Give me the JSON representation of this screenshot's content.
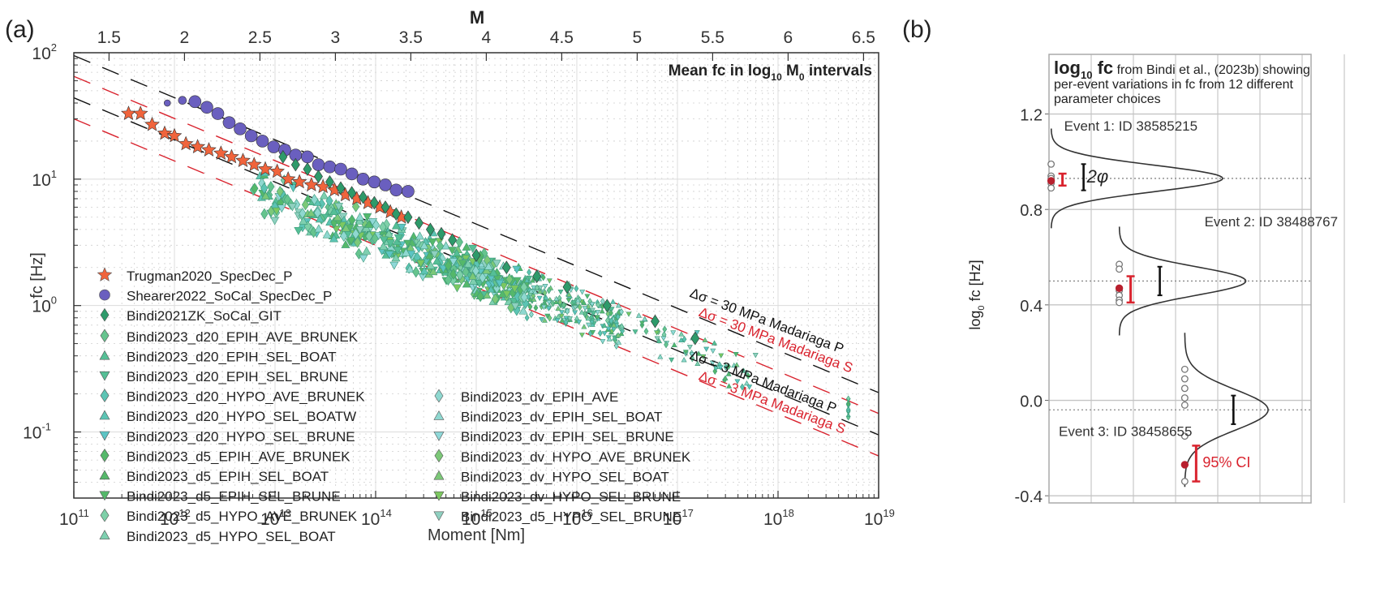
{
  "panel_labels": {
    "a": "(a)",
    "b": "(b)"
  },
  "chart_data": [
    {
      "id": "a",
      "type": "scatter",
      "title": "Mean fc in log10 M0 intervals",
      "title_parts": {
        "main": "Mean fc in log",
        "sub1": "10",
        "mid": " M",
        "sub2": "0",
        "end": " intervals"
      },
      "xlabel": "Moment [Nm]",
      "ylabel": "fc [Hz]",
      "top_axis_label": "M",
      "xscale": "log",
      "yscale": "log",
      "xlim": [
        100000000000.0,
        1e+19
      ],
      "ylim": [
        0.03,
        100
      ],
      "grid": true,
      "x_ticks": [
        {
          "base": "10",
          "exp": "11",
          "value": 100000000000.0
        },
        {
          "base": "10",
          "exp": "12",
          "value": 1000000000000.0
        },
        {
          "base": "10",
          "exp": "13",
          "value": 10000000000000.0
        },
        {
          "base": "10",
          "exp": "14",
          "value": 100000000000000.0
        },
        {
          "base": "10",
          "exp": "15",
          "value": 1000000000000000.0
        },
        {
          "base": "10",
          "exp": "16",
          "value": 1e+16
        },
        {
          "base": "10",
          "exp": "17",
          "value": 1e+17
        },
        {
          "base": "10",
          "exp": "18",
          "value": 1e+18
        },
        {
          "base": "10",
          "exp": "19",
          "value": 1e+19
        }
      ],
      "y_ticks": [
        {
          "base": "10",
          "exp": "-1",
          "value": 0.1
        },
        {
          "base": "10",
          "exp": "0",
          "value": 1
        },
        {
          "base": "10",
          "exp": "1",
          "value": 10
        },
        {
          "base": "10",
          "exp": "2",
          "value": 100
        }
      ],
      "top_ticks": [
        "1.5",
        "2",
        "2.5",
        "3",
        "3.5",
        "4",
        "4.5",
        "5",
        "5.5",
        "6",
        "6.5"
      ],
      "reference_lines": [
        {
          "label": "Δσ = 30 MPa Madariaga P",
          "color": "#111111",
          "fc_at_1e11": 95
        },
        {
          "label": "Δσ = 30 MPa Madariaga S",
          "color": "#d9232e",
          "fc_at_1e11": 65
        },
        {
          "label": "Δσ = 3 MPa Madariaga P",
          "color": "#111111",
          "fc_at_1e11": 44
        },
        {
          "label": "Δσ = 3 MPa Madariaga S",
          "color": "#d9232e",
          "fc_at_1e11": 30
        }
      ],
      "series": [
        {
          "name": "Trugman2020_SpecDec_P",
          "marker": "star",
          "color": "#f0643c",
          "points": [
            [
              350000000000.0,
              33
            ],
            [
              460000000000.0,
              33
            ],
            [
              600000000000.0,
              27
            ],
            [
              800000000000.0,
              23
            ],
            [
              1000000000000.0,
              22
            ],
            [
              1300000000000.0,
              19
            ],
            [
              1700000000000.0,
              18
            ],
            [
              2200000000000.0,
              17
            ],
            [
              2900000000000.0,
              16
            ],
            [
              3700000000000.0,
              15
            ],
            [
              4800000000000.0,
              14
            ],
            [
              6200000000000.0,
              13
            ],
            [
              8000000000000.0,
              12
            ],
            [
              10500000000000.0,
              11.5
            ],
            [
              13500000000000.0,
              10
            ],
            [
              17500000000000.0,
              9.5
            ],
            [
              23000000000000.0,
              9
            ],
            [
              30000000000000.0,
              8.7
            ],
            [
              39000000000000.0,
              8.2
            ],
            [
              50000000000000.0,
              7.5
            ],
            [
              65000000000000.0,
              7
            ],
            [
              84000000000000.0,
              6.5
            ],
            [
              110000000000000.0,
              6
            ],
            [
              140000000000000.0,
              5.5
            ],
            [
              180000000000000.0,
              5
            ]
          ]
        },
        {
          "name": "Shearer2022_SoCal_SpecDec_P",
          "marker": "circle",
          "color": "#6a5fbf",
          "points": [
            [
              850000000000.0,
              40
            ],
            [
              1200000000000.0,
              42
            ],
            [
              1600000000000.0,
              41
            ],
            [
              2100000000000.0,
              37
            ],
            [
              2700000000000.0,
              33
            ],
            [
              3500000000000.0,
              28
            ],
            [
              4500000000000.0,
              25
            ],
            [
              5800000000000.0,
              22
            ],
            [
              7500000000000.0,
              20
            ],
            [
              9700000000000.0,
              18
            ],
            [
              12500000000000.0,
              17
            ],
            [
              16000000000000.0,
              15.5
            ],
            [
              21000000000000.0,
              15
            ],
            [
              27000000000000.0,
              13
            ],
            [
              35000000000000.0,
              12.5
            ],
            [
              45000000000000.0,
              12
            ],
            [
              58000000000000.0,
              11
            ],
            [
              75000000000000.0,
              10
            ],
            [
              97000000000000.0,
              9.5
            ],
            [
              125000000000000.0,
              9
            ],
            [
              160000000000000.0,
              8.2
            ],
            [
              210000000000000.0,
              8
            ]
          ]
        },
        {
          "name": "Bindi2021ZK_SoCal_GIT",
          "marker": "diamond",
          "color": "#2e9a6a",
          "points": [
            [
              12000000000000.0,
              15
            ],
            [
              16000000000000.0,
              13
            ],
            [
              21000000000000.0,
              12
            ],
            [
              27000000000000.0,
              10.5
            ],
            [
              35000000000000.0,
              9.5
            ],
            [
              45000000000000.0,
              8.5
            ],
            [
              58000000000000.0,
              7.8
            ],
            [
              75000000000000.0,
              7.2
            ],
            [
              97000000000000.0,
              6.5
            ],
            [
              125000000000000.0,
              6
            ],
            [
              160000000000000.0,
              5.3
            ],
            [
              210000000000000.0,
              5
            ],
            [
              270000000000000.0,
              4.5
            ],
            [
              350000000000000.0,
              4
            ],
            [
              450000000000000.0,
              3.7
            ],
            [
              580000000000000.0,
              3.3
            ],
            [
              1000000000000000.0,
              2.5
            ],
            [
              2000000000000000.0,
              2
            ],
            [
              4000000000000000.0,
              1.7
            ],
            [
              8000000000000000.0,
              1.4
            ],
            [
              2e+16,
              1
            ],
            [
              6e+16,
              0.75
            ],
            [
              1.5e+17,
              0.55
            ]
          ]
        },
        {
          "name": "Bindi2023_d20_EPIH_AVE_BRUNEK",
          "marker": "diamond",
          "color": "#66c48e",
          "points": []
        },
        {
          "name": "Bindi2023_d20_EPIH_SEL_BOAT",
          "marker": "triangle-up",
          "color": "#55bf96",
          "points": []
        },
        {
          "name": "Bindi2023_d20_EPIH_SEL_BRUNE",
          "marker": "triangle-down",
          "color": "#55bf96",
          "points": []
        },
        {
          "name": "Bindi2023_d20_HYPO_AVE_BRUNEK",
          "marker": "diamond",
          "color": "#5cc4b4",
          "points": []
        },
        {
          "name": "Bindi2023_d20_HYPO_SEL_BOATW",
          "marker": "triangle-up",
          "color": "#5cc4b4",
          "points": []
        },
        {
          "name": "Bindi2023_d20_HYPO_SEL_BRUNE",
          "marker": "triangle-down",
          "color": "#5cc4c4",
          "points": []
        },
        {
          "name": "Bindi2023_d5_EPIH_AVE_BRUNEK",
          "marker": "diamond",
          "color": "#55b86a",
          "points": []
        },
        {
          "name": "Bindi2023_d5_EPIH_SEL_BOAT",
          "marker": "triangle-up",
          "color": "#55b86a",
          "points": []
        },
        {
          "name": "Bindi2023_d5_EPIH_SEL_BRUNE",
          "marker": "triangle-down",
          "color": "#55b86a",
          "points": []
        },
        {
          "name": "Bindi2023_d5_HYPO_AVE_BRUNEK",
          "marker": "diamond",
          "color": "#7ed0a8",
          "points": []
        },
        {
          "name": "Bindi2023_d5_HYPO_SEL_BOAT",
          "marker": "triangle-up",
          "color": "#7ed0b0",
          "points": []
        },
        {
          "name": "Bindi2023_dv_EPIH_AVE",
          "marker": "diamond",
          "color": "#8fd8d0",
          "points": []
        },
        {
          "name": "Bindi2023_dv_EPIH_SEL_BOAT",
          "marker": "triangle-up",
          "color": "#8fd8d0",
          "points": []
        },
        {
          "name": "Bindi2023_dv_EPIH_SEL_BRUNE",
          "marker": "triangle-down",
          "color": "#8fd8d8",
          "points": []
        },
        {
          "name": "Bindi2023_dv_HYPO_AVE_BRUNEK",
          "marker": "diamond",
          "color": "#7cc878",
          "points": []
        },
        {
          "name": "Bindi2023_dv_HYPO_SEL_BOAT",
          "marker": "triangle-up",
          "color": "#7cc878",
          "points": []
        },
        {
          "name": "Bindi2023_dv_HYPO_SEL_BRUNE",
          "marker": "triangle-down",
          "color": "#7cc860",
          "points": []
        },
        {
          "name": "Bindi2023_d5_HYPO_SEL_BRUNE",
          "marker": "triangle-down",
          "color": "#8fd0c0",
          "points": []
        }
      ],
      "bindi2023_cloud": {
        "description": "Dense cloud of Bindi2023 variants following approx. fc ∝ M0^(-1/3)",
        "trend": [
          [
            6000000000000.0,
            8.5
          ],
          [
            10000000000000.0,
            7
          ],
          [
            30000000000000.0,
            5
          ],
          [
            100000000000000.0,
            3.5
          ],
          [
            300000000000000.0,
            2.6
          ],
          [
            1000000000000000.0,
            1.8
          ],
          [
            3000000000000000.0,
            1.3
          ],
          [
            1e+16,
            0.95
          ],
          [
            3e+16,
            0.7
          ],
          [
            1e+17,
            0.5
          ],
          [
            3e+17,
            0.35
          ],
          [
            5e+18,
            0.15
          ]
        ],
        "spread_factor": 1.35
      },
      "legend": {
        "placement": "lower-left",
        "columns": 2
      }
    },
    {
      "id": "b",
      "type": "line",
      "title_bold": "log",
      "title_sub": "10",
      "title_bold2": " fc",
      "title_rest": " from Bindi et al., (2023b) showing per-event variations in fc from 12 different parameter choices",
      "title_lines": [
        "from Bindi et al., (2023b) showing",
        "per-event variations in fc from 12 different",
        "parameter choices"
      ],
      "ylabel_main": "log",
      "ylabel_sub": "0",
      "ylabel_rest": " fc [Hz]",
      "ylim": [
        -0.43,
        1.45
      ],
      "y_ticks": [
        {
          "label": "1.2",
          "value": 1.2
        },
        {
          "label": "0.8",
          "value": 0.8
        },
        {
          "label": "0.4",
          "value": 0.4
        },
        {
          "label": "0.0",
          "value": 0.0
        },
        {
          "label": "-0.4",
          "value": -0.4
        }
      ],
      "grid": true,
      "annotations": {
        "sigma_label": "2φ",
        "ci_label": "95% CI"
      },
      "events": [
        {
          "label": "Event 1: ID 38585215",
          "mean": 0.93,
          "sigma": 0.055,
          "samples": [
            0.99,
            0.94,
            0.93,
            0.91,
            0.89
          ],
          "highlighted": 0.92,
          "ci95": [
            0.9,
            0.95
          ],
          "spread": [
            0.88,
            0.99
          ]
        },
        {
          "label": "Event 2: ID 38488767",
          "mean": 0.5,
          "sigma": 0.06,
          "samples": [
            0.57,
            0.55,
            0.46,
            0.44,
            0.42,
            0.41
          ],
          "highlighted": 0.47,
          "ci95": [
            0.41,
            0.52
          ],
          "spread": [
            0.44,
            0.56
          ]
        },
        {
          "label": "Event 3: ID 38458655",
          "mean": -0.04,
          "sigma": 0.085,
          "samples": [
            0.13,
            0.09,
            0.05,
            0.01,
            -0.02,
            -0.15,
            -0.34
          ],
          "highlighted": -0.27,
          "ci95": [
            -0.34,
            -0.19
          ],
          "spread": [
            -0.1,
            0.02
          ]
        }
      ]
    }
  ]
}
